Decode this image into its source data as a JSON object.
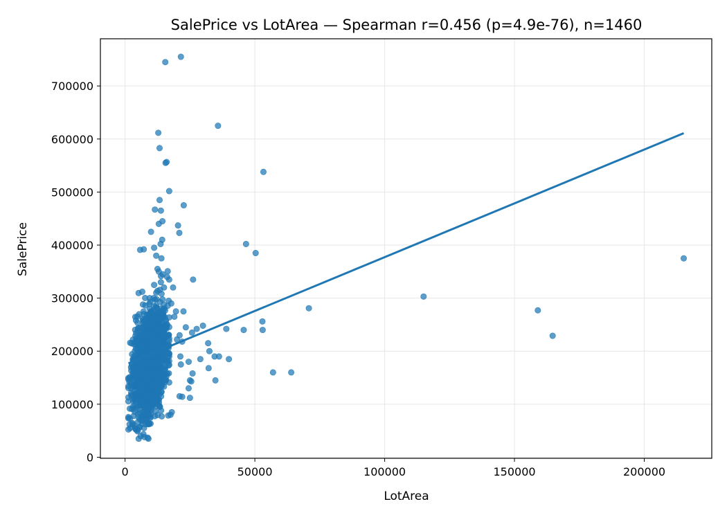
{
  "chart_data": {
    "type": "scatter",
    "title": "SalePrice vs LotArea — Spearman r=0.456 (p=4.9e-76), n=1460",
    "xlabel": "LotArea",
    "ylabel": "SalePrice",
    "xlim": [
      -9500,
      226000
    ],
    "ylim": [
      -2000,
      789000
    ],
    "xticks": [
      0,
      50000,
      100000,
      150000,
      200000
    ],
    "xtick_labels": [
      "0",
      "50000",
      "100000",
      "150000",
      "200000"
    ],
    "yticks": [
      0,
      100000,
      200000,
      300000,
      400000,
      500000,
      600000,
      700000
    ],
    "ytick_labels": [
      "0",
      "100000",
      "200000",
      "300000",
      "400000",
      "500000",
      "600000",
      "700000"
    ],
    "grid": true,
    "colors": {
      "points": "#1f77b4",
      "fit_line": "#1f77b4",
      "grid": "#e6e6e6"
    },
    "series": [
      {
        "kind": "points",
        "x": [
          15500,
          21500,
          12800,
          35800,
          13300,
          15600,
          16000,
          53300,
          17000,
          22600,
          13300,
          13800,
          11500,
          13000,
          14400,
          20400,
          20900,
          14300,
          11200,
          10000,
          7200,
          5800,
          13700,
          12000,
          46600,
          50300,
          26200,
          70800,
          115000,
          159000,
          164700,
          215200,
          3800,
          4200,
          6000,
          7500,
          9000,
          8700,
          7300,
          3500,
          52900,
          53000,
          45700,
          39000,
          32000,
          30000,
          27600,
          23400,
          25800,
          22000,
          20000,
          21000,
          22000,
          25000,
          29000,
          32500,
          34500,
          36200,
          40000,
          26000,
          21500,
          24500,
          25000,
          24500,
          25500,
          21300,
          18000,
          17500,
          32200,
          34800,
          57000,
          64000,
          21000,
          14000,
          13000,
          12500,
          14500,
          13800,
          16200,
          15000,
          17000,
          11000,
          12000,
          9500,
          16800,
          18500,
          17800,
          19600,
          22500,
          19000
        ],
        "y": [
          745000,
          755000,
          611700,
          625000,
          582900,
          555000,
          556600,
          538000,
          501800,
          475000,
          485000,
          465000,
          467000,
          440000,
          445000,
          437000,
          423000,
          410000,
          395000,
          425000,
          392000,
          391000,
          402000,
          380000,
          402000,
          385000,
          335000,
          281000,
          303000,
          277000,
          229000,
          375000,
          55000,
          52000,
          40000,
          38000,
          35000,
          37000,
          55000,
          60000,
          256000,
          240000,
          240000,
          242000,
          215000,
          248000,
          242000,
          245000,
          235000,
          218000,
          222000,
          115000,
          114000,
          112000,
          185000,
          200000,
          190000,
          190000,
          185000,
          158000,
          175000,
          180000,
          145000,
          130000,
          143000,
          190000,
          85000,
          80000,
          168000,
          145000,
          160000,
          160000,
          230000,
          375000,
          350000,
          355000,
          345000,
          330000,
          340000,
          320000,
          335000,
          300000,
          310000,
          300000,
          295000,
          320000,
          290000,
          275000,
          275000,
          265000
        ]
      },
      {
        "kind": "dense_cluster",
        "x_range": [
          1300,
          17000
        ],
        "y_range": [
          35000,
          370000
        ],
        "center_x": 9500,
        "center_y": 180000
      },
      {
        "kind": "fit_line",
        "x": [
          1300,
          215200
        ],
        "y": [
          177000,
          611000
        ]
      }
    ]
  }
}
